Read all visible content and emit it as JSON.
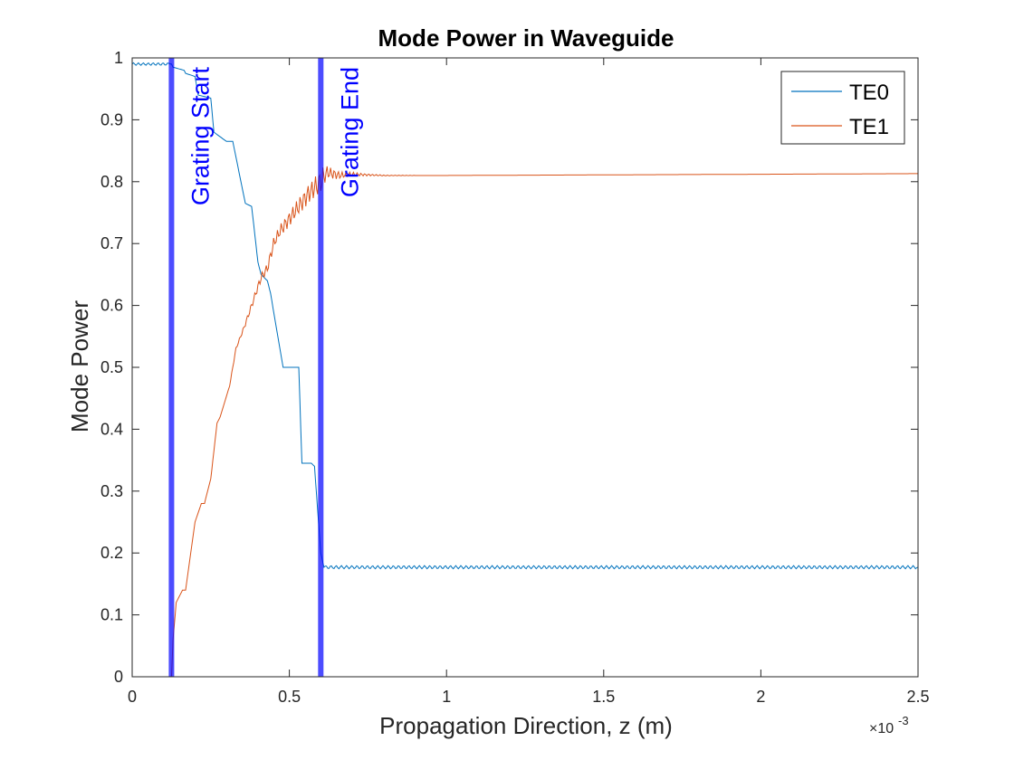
{
  "chart_data": {
    "type": "line",
    "title": "Mode Power in Waveguide",
    "xlabel": "Propagation Direction, z (m)",
    "ylabel": "Mode Power",
    "x_exponent": "×10",
    "x_exponent_power": "-3",
    "xlim": [
      0,
      2.5
    ],
    "ylim": [
      0,
      1
    ],
    "x_ticks": [
      0,
      0.5,
      1,
      1.5,
      2,
      2.5
    ],
    "x_tick_labels": [
      "0",
      "0.5",
      "1",
      "1.5",
      "2",
      "2.5"
    ],
    "y_ticks": [
      0,
      0.1,
      0.2,
      0.3,
      0.4,
      0.5,
      0.6,
      0.7,
      0.8,
      0.9,
      1
    ],
    "y_tick_labels": [
      "0",
      "0.1",
      "0.2",
      "0.3",
      "0.4",
      "0.5",
      "0.6",
      "0.7",
      "0.8",
      "0.9",
      "1"
    ],
    "grid": false,
    "legend_position": "top-right",
    "series": [
      {
        "name": "TE0",
        "color": "#0072BD",
        "x": [
          0,
          0.12,
          0.125,
          0.13,
          0.165,
          0.17,
          0.2,
          0.21,
          0.25,
          0.26,
          0.3,
          0.32,
          0.36,
          0.38,
          0.4,
          0.41,
          0.43,
          0.44,
          0.48,
          0.49,
          0.53,
          0.54,
          0.57,
          0.58,
          0.6,
          0.61,
          2.5
        ],
        "y": [
          0.99,
          0.99,
          0.99,
          0.985,
          0.98,
          0.975,
          0.97,
          0.94,
          0.935,
          0.88,
          0.865,
          0.865,
          0.765,
          0.76,
          0.67,
          0.65,
          0.64,
          0.62,
          0.5,
          0.5,
          0.5,
          0.345,
          0.345,
          0.34,
          0.2,
          0.177,
          0.177
        ]
      },
      {
        "name": "TE1",
        "color": "#D95319",
        "x": [
          0,
          0.12,
          0.125,
          0.13,
          0.14,
          0.16,
          0.17,
          0.2,
          0.22,
          0.23,
          0.25,
          0.27,
          0.28,
          0.31,
          0.33,
          0.36,
          0.38,
          0.4,
          0.41,
          0.43,
          0.45,
          0.47,
          0.5,
          0.53,
          0.56,
          0.58,
          0.6,
          0.62,
          0.66,
          0.7,
          0.8,
          1,
          2.5
        ],
        "y": [
          0,
          0,
          0,
          0.06,
          0.12,
          0.14,
          0.14,
          0.25,
          0.28,
          0.28,
          0.32,
          0.41,
          0.42,
          0.47,
          0.53,
          0.57,
          0.6,
          0.63,
          0.645,
          0.66,
          0.7,
          0.72,
          0.74,
          0.76,
          0.78,
          0.79,
          0.8,
          0.815,
          0.81,
          0.812,
          0.81,
          0.81,
          0.813
        ]
      }
    ],
    "annotations": [
      {
        "x": 0.125,
        "label": "Grating Start",
        "color": "#0000FF"
      },
      {
        "x": 0.6,
        "label": "Grating End",
        "color": "#0000FF"
      }
    ]
  }
}
